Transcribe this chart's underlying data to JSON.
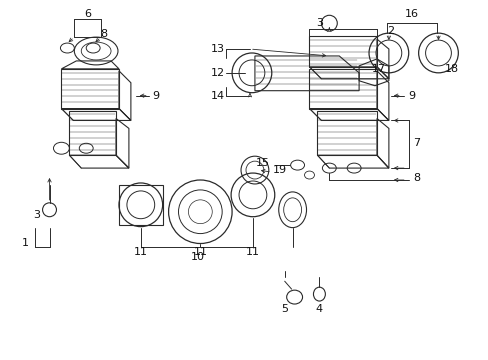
{
  "bg_color": "#ffffff",
  "line_color": "#2a2a2a",
  "text_color": "#111111",
  "fig_width": 4.89,
  "fig_height": 3.6,
  "dpi": 100
}
